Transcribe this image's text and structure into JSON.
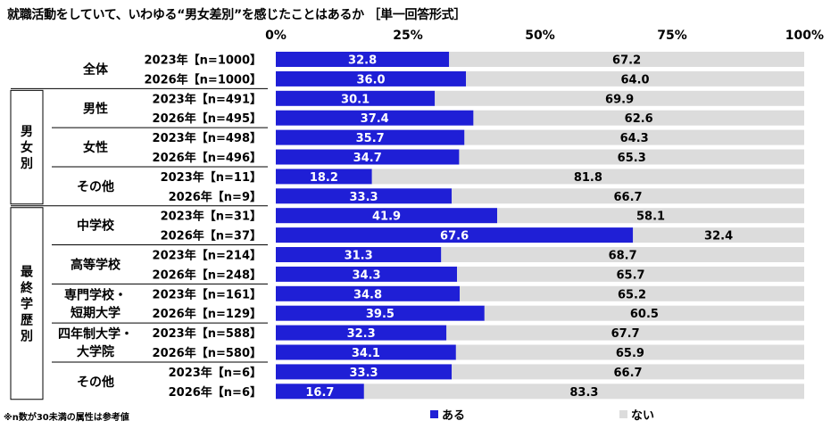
{
  "title": "就職活動をしていて、いわゆる“男女差別”を感じたことはあるか ［単一回答形式］",
  "note": "※n数が30未満の属性は参考値",
  "chart_data": {
    "type": "bar",
    "stacked": true,
    "orientation": "horizontal",
    "xlim": [
      0,
      100
    ],
    "x_tick_labels": [
      "0%",
      "25%",
      "50%",
      "75%",
      "100%"
    ],
    "grid": false,
    "legend_position": "bottom",
    "colors": {
      "ある": "#1f1fd6",
      "ない": "#dcdcdc"
    },
    "series": [
      {
        "name": "ある",
        "color": "#1f1fd6",
        "values": [
          32.8,
          36.0,
          30.1,
          37.4,
          35.7,
          34.7,
          18.2,
          33.3,
          41.9,
          67.6,
          31.3,
          34.3,
          34.8,
          39.5,
          32.3,
          34.1,
          33.3,
          16.7
        ]
      },
      {
        "name": "ない",
        "color": "#dcdcdc",
        "values": [
          67.2,
          64.0,
          69.9,
          62.6,
          64.3,
          65.3,
          81.8,
          66.7,
          58.1,
          32.4,
          68.7,
          65.7,
          65.2,
          60.5,
          67.7,
          65.9,
          66.7,
          83.3
        ]
      }
    ],
    "categories": [
      "2023年【n=1000】",
      "2026年【n=1000】",
      "2023年【n=491】",
      "2026年【n=495】",
      "2023年【n=498】",
      "2026年【n=496】",
      "2023年【n=11】",
      "2026年【n=9】",
      "2023年【n=31】",
      "2026年【n=37】",
      "2023年【n=214】",
      "2026年【n=248】",
      "2023年【n=161】",
      "2026年【n=129】",
      "2023年【n=588】",
      "2026年【n=580】",
      "2023年【n=6】",
      "2026年【n=6】"
    ],
    "groups": [
      {
        "label": [
          "全体"
        ],
        "rows": 2
      },
      {
        "label": [
          "男性"
        ],
        "rows": 2
      },
      {
        "label": [
          "女性"
        ],
        "rows": 2
      },
      {
        "label": [
          "その他"
        ],
        "rows": 2
      },
      {
        "label": [
          "中学校"
        ],
        "rows": 2
      },
      {
        "label": [
          "高等学校"
        ],
        "rows": 2
      },
      {
        "label": [
          "専門学校・",
          "短期大学"
        ],
        "rows": 2
      },
      {
        "label": [
          "四年制大学・",
          "大学院"
        ],
        "rows": 2
      },
      {
        "label": [
          "その他"
        ],
        "rows": 2
      }
    ],
    "sections": [
      {
        "label": "男女別",
        "group_start": 1,
        "group_end": 3
      },
      {
        "label": "最終学歴別",
        "group_start": 4,
        "group_end": 8
      }
    ]
  }
}
